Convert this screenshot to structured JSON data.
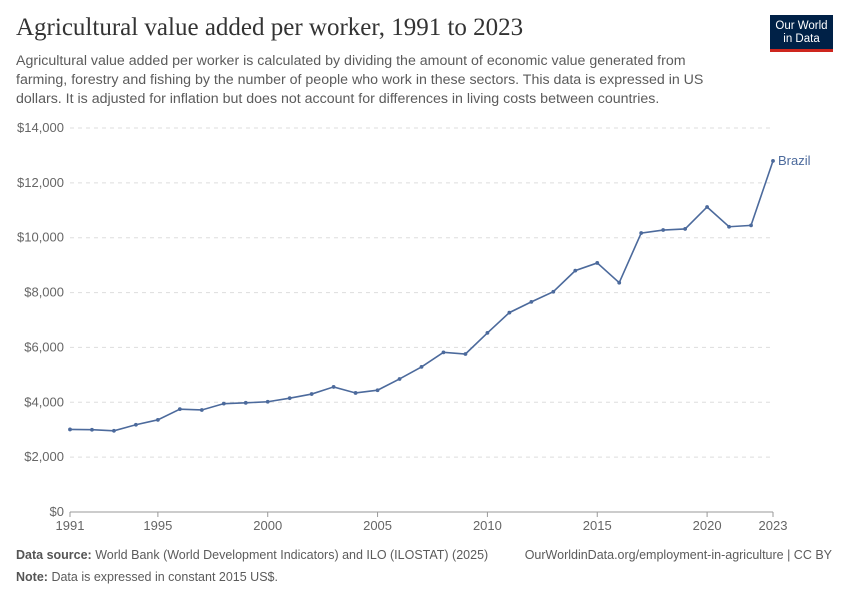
{
  "header": {
    "title": "Agricultural value added per worker, 1991 to 2023",
    "subtitle": "Agricultural value added per worker is calculated by dividing the amount of economic value generated from farming, forestry and fishing by the number of people who work in these sectors. This data is expressed in US dollars. It is adjusted for inflation but does not account for differences in living costs between countries.",
    "logo": "Our World in Data"
  },
  "chart_data": {
    "type": "line",
    "title": "Agricultural value added per worker, 1991 to 2023",
    "xlim": [
      1991,
      2023
    ],
    "ylim": [
      0,
      14000
    ],
    "x_ticks": [
      1991,
      1995,
      2000,
      2005,
      2010,
      2015,
      2020,
      2023
    ],
    "y_ticks": [
      0,
      2000,
      4000,
      6000,
      8000,
      10000,
      12000,
      14000
    ],
    "y_tick_labels": [
      "$0",
      "$2,000",
      "$4,000",
      "$6,000",
      "$8,000",
      "$10,000",
      "$12,000",
      "$14,000"
    ],
    "grid": "horizontal dashed",
    "series": [
      {
        "name": "Brazil",
        "color": "#4c6a9c",
        "x": [
          1991,
          1992,
          1993,
          1994,
          1995,
          1996,
          1997,
          1998,
          1999,
          2000,
          2001,
          2002,
          2003,
          2004,
          2005,
          2006,
          2007,
          2008,
          2009,
          2010,
          2011,
          2012,
          2013,
          2014,
          2015,
          2016,
          2017,
          2018,
          2019,
          2020,
          2021,
          2022,
          2023
        ],
        "values": [
          3010,
          3000,
          2960,
          3180,
          3360,
          3750,
          3720,
          3950,
          3980,
          4020,
          4150,
          4300,
          4560,
          4340,
          4440,
          4850,
          5290,
          5820,
          5760,
          6530,
          7270,
          7660,
          8030,
          8800,
          9080,
          8360,
          10170,
          10280,
          10320,
          11120,
          10400,
          10450,
          12800
        ]
      }
    ]
  },
  "footer": {
    "source_label": "Data source:",
    "source": "World Bank (World Development Indicators) and ILO (ILOSTAT) (2025)",
    "url": "OurWorldinData.org/employment-in-agriculture | CC BY",
    "note_label": "Note:",
    "note": "Data is expressed in constant 2015 US$."
  }
}
